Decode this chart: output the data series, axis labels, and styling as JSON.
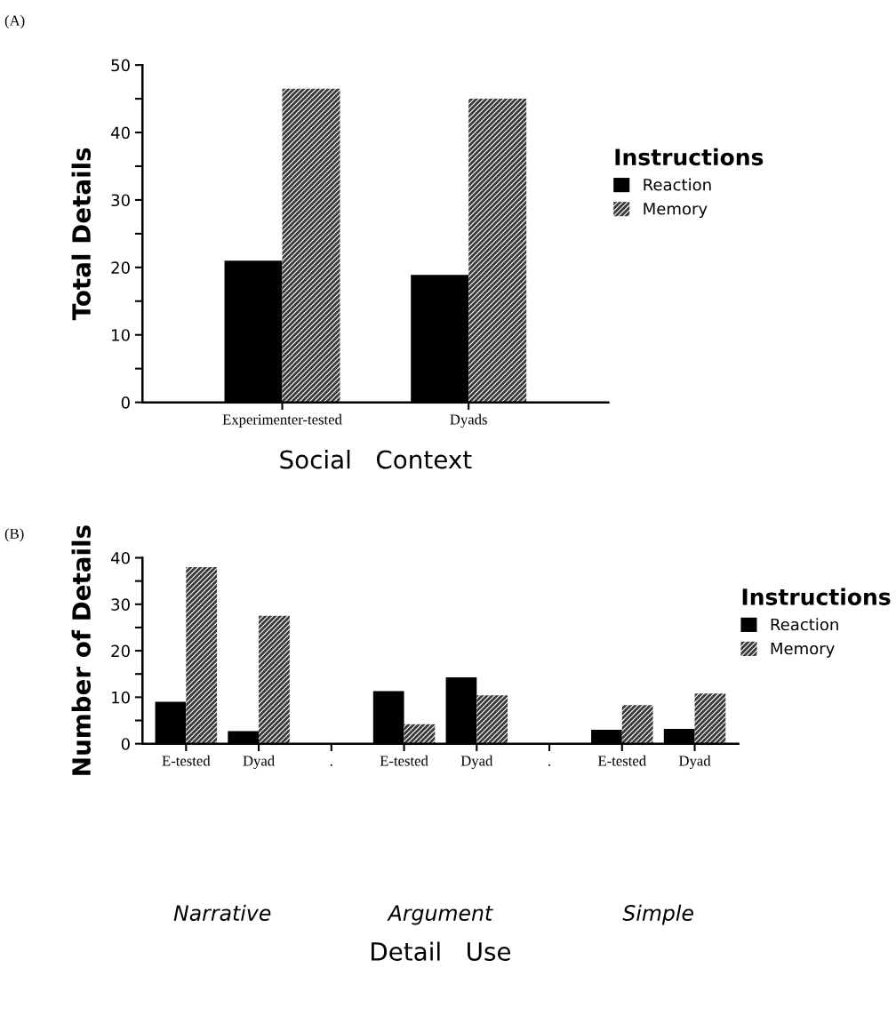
{
  "chart_data": [
    {
      "type": "bar",
      "title": "(A)",
      "xlabel": "Social   Context",
      "ylabel": "Total Details",
      "legend_title": "Instructions",
      "legend": "right",
      "categories": [
        "Experimenter-tested",
        "Dyads"
      ],
      "series": [
        {
          "name": "Reaction",
          "color": "#000000",
          "values": [
            21.0,
            18.9
          ]
        },
        {
          "name": "Memory",
          "color": "#3a3a3a",
          "values": [
            46.5,
            45.0
          ]
        }
      ],
      "ylim": [
        0,
        50
      ],
      "yticks": [
        0,
        {
          "value": 5,
          "label": null
        },
        10,
        {
          "value": 15,
          "label": null
        },
        20,
        {
          "value": 25,
          "label": null
        },
        30,
        {
          "value": 35,
          "label": null
        },
        40,
        {
          "value": 45,
          "label": null
        },
        50
      ],
      "grid": false
    },
    {
      "type": "bar",
      "title": "(B)",
      "xlabel": "Detail   Use",
      "ylabel": "Number of Details",
      "legend_title": "Instructions",
      "legend": "right",
      "categories": [
        "E-tested",
        "Dyad",
        ".",
        "E-tested",
        "Dyad",
        ".",
        "E-tested",
        "Dyad"
      ],
      "series": [
        {
          "name": "Reaction",
          "color": "#000000",
          "values": [
            9.0,
            2.7,
            null,
            11.3,
            14.3,
            null,
            3.0,
            3.2
          ]
        },
        {
          "name": "Memory",
          "color": "#3a3a3a",
          "values": [
            38.0,
            27.5,
            null,
            4.2,
            10.4,
            null,
            8.3,
            10.8
          ]
        }
      ],
      "annotations": [
        "Narrative",
        "Argument",
        "Simple"
      ],
      "ylim": [
        0,
        40
      ],
      "yticks": [
        0,
        {
          "value": 5,
          "label": null
        },
        10,
        {
          "value": 15,
          "label": null
        },
        20,
        {
          "value": 25,
          "label": null
        },
        30,
        {
          "value": 35,
          "label": null
        },
        40
      ],
      "grid": false
    }
  ]
}
